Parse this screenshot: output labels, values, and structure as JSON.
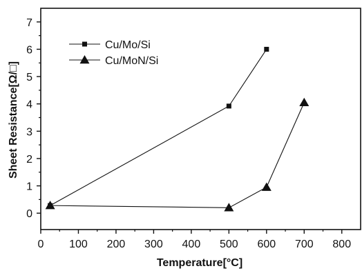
{
  "chart_data": {
    "type": "line",
    "title": "",
    "xlabel": "Temperature[°C]",
    "ylabel": "Sheet Resistance[Ω/□]",
    "xlim": [
      0,
      850
    ],
    "ylim": [
      -0.6,
      7.5
    ],
    "xticks": [
      0,
      100,
      200,
      300,
      400,
      500,
      600,
      700,
      800
    ],
    "yticks": [
      0,
      1,
      2,
      3,
      4,
      5,
      6,
      7
    ],
    "grid": false,
    "legend_position": "top-left",
    "series": [
      {
        "name": "Cu/Mo/Si",
        "marker": "square",
        "color": "#111111",
        "x": [
          25,
          500,
          600
        ],
        "y": [
          0.28,
          3.92,
          6.0
        ]
      },
      {
        "name": "Cu/MoN/Si",
        "marker": "triangle",
        "color": "#111111",
        "x": [
          25,
          500,
          600,
          700
        ],
        "y": [
          0.28,
          0.2,
          0.95,
          4.05
        ]
      }
    ]
  }
}
